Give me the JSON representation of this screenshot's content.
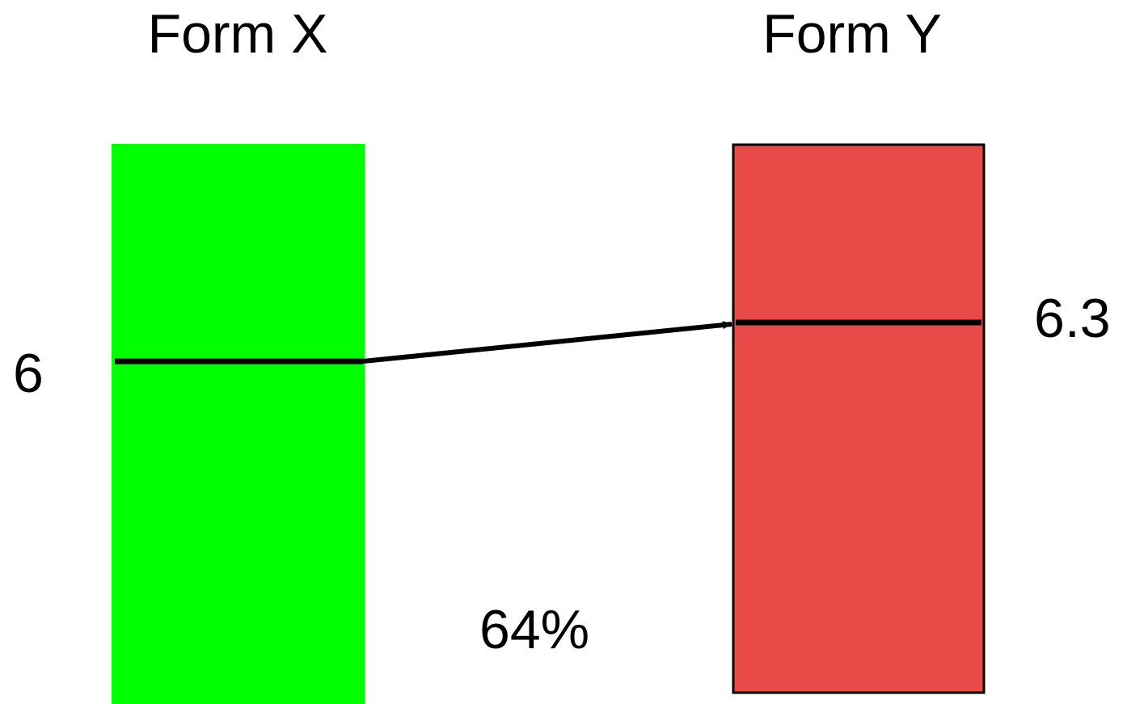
{
  "form_x": {
    "title": "Form X",
    "score": "6",
    "color": "#00ff00"
  },
  "form_y": {
    "title": "Form Y",
    "score": "6.3",
    "color": "#e84a48",
    "border_color": "#000000"
  },
  "percentile": "64%",
  "line_color": "#000000"
}
